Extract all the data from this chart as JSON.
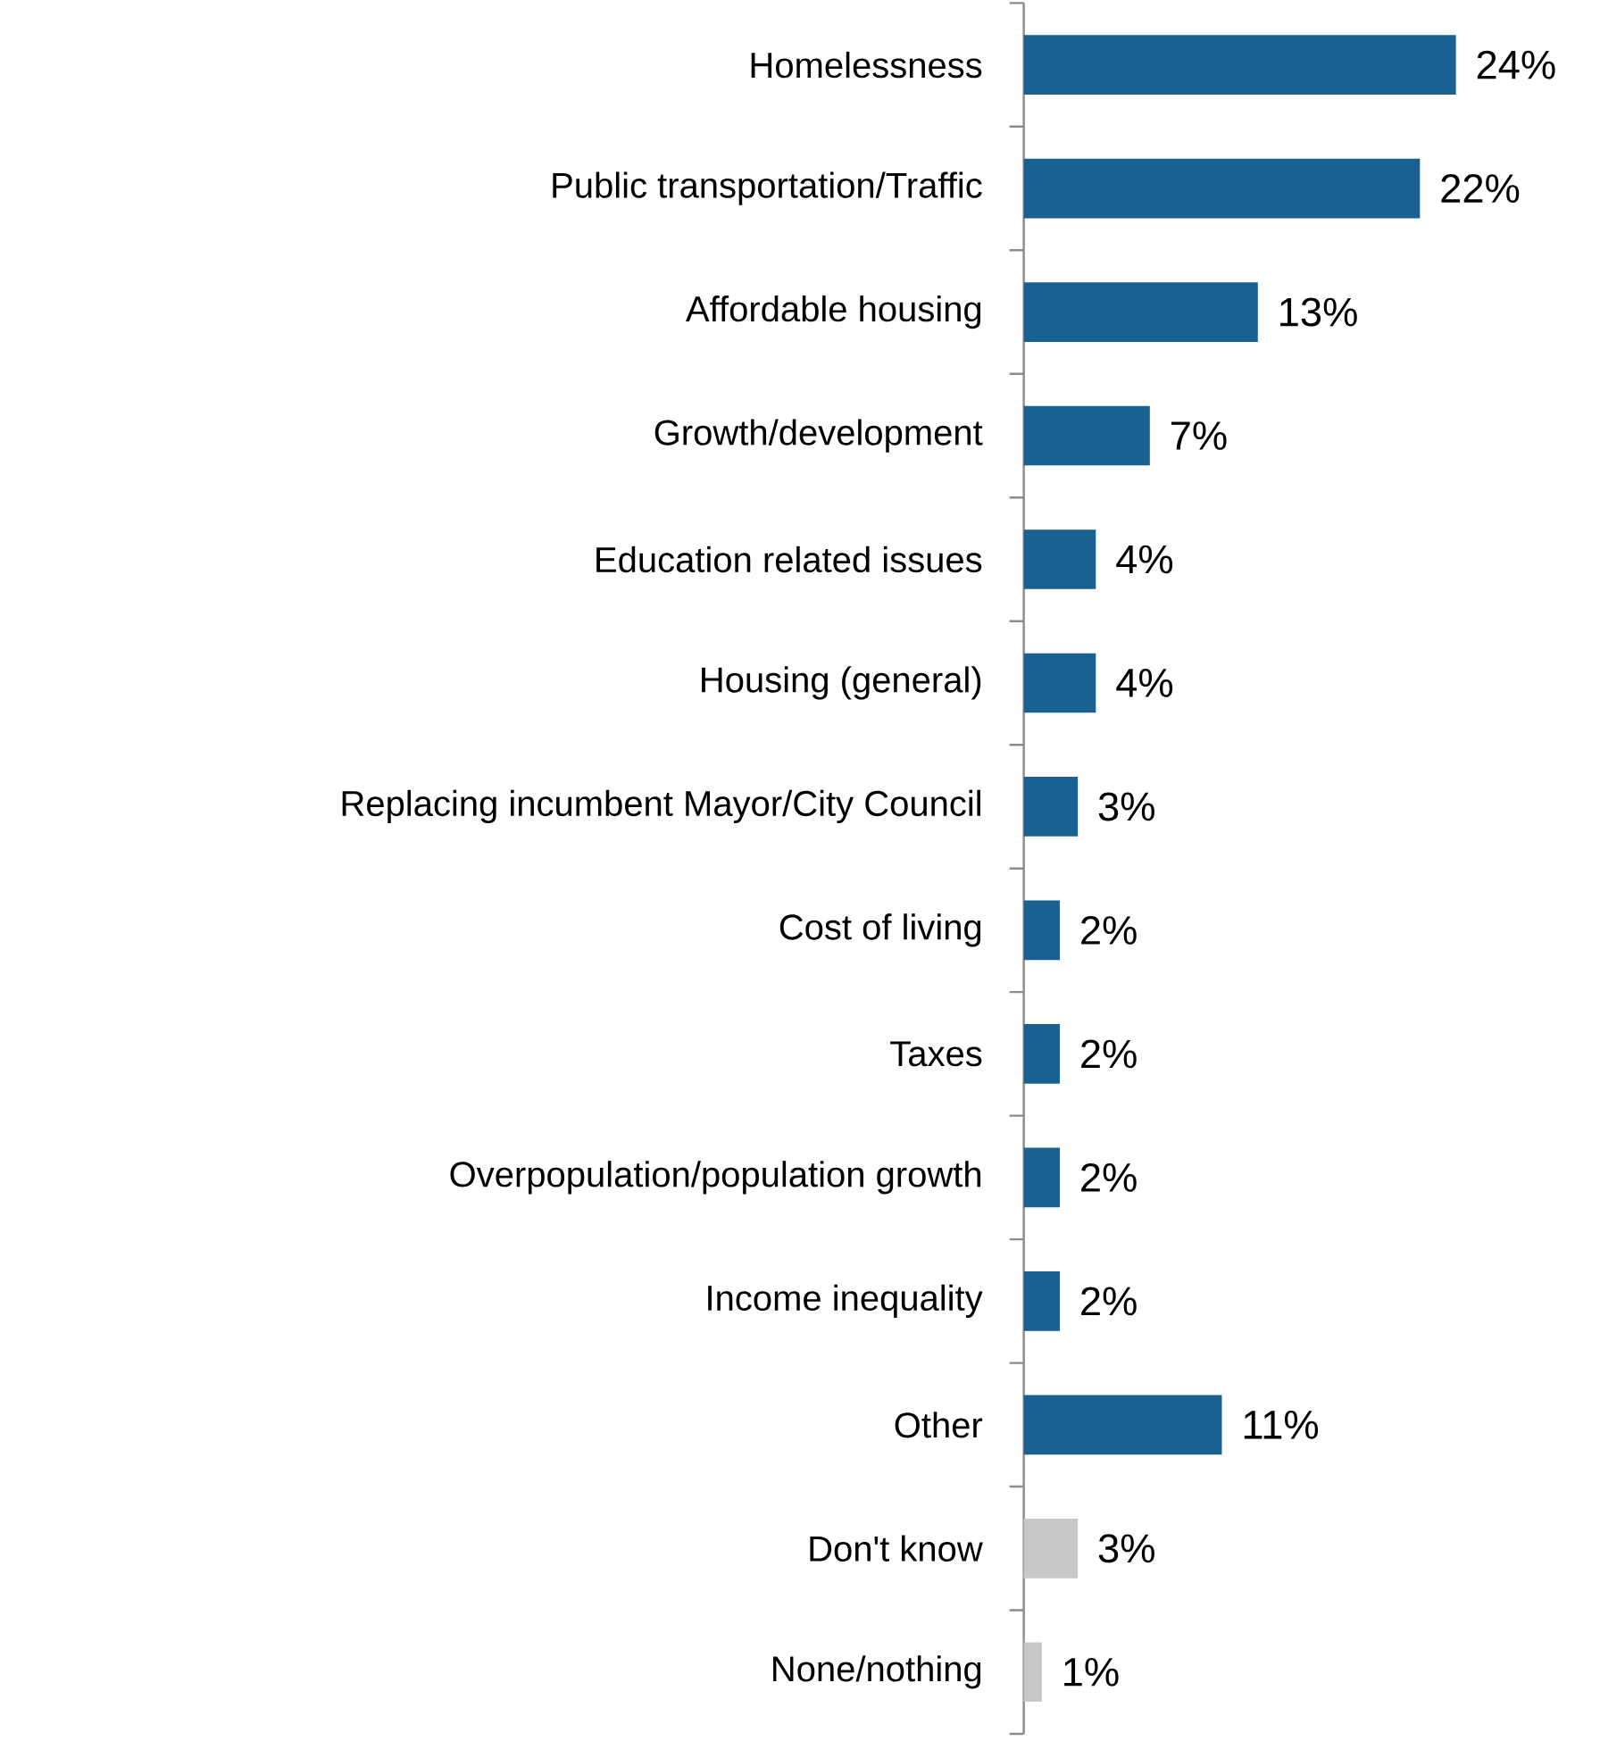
{
  "chart_data": {
    "type": "bar",
    "orientation": "horizontal",
    "categories": [
      "Homelessness",
      "Public transportation/Traffic",
      "Affordable housing",
      "Growth/development",
      "Education related issues",
      "Housing (general)",
      "Replacing incumbent Mayor/City Council",
      "Cost of living",
      "Taxes",
      "Overpopulation/population growth",
      "Income inequality",
      "Other",
      "Don't know",
      "None/nothing"
    ],
    "values": [
      24,
      22,
      13,
      7,
      4,
      4,
      3,
      2,
      2,
      2,
      2,
      11,
      3,
      1
    ],
    "value_labels": [
      "24%",
      "22%",
      "13%",
      "7%",
      "4%",
      "4%",
      "3%",
      "2%",
      "2%",
      "2%",
      "2%",
      "11%",
      "3%",
      "1%"
    ],
    "colors": [
      "#1a6193",
      "#1a6193",
      "#1a6193",
      "#1a6193",
      "#1a6193",
      "#1a6193",
      "#1a6193",
      "#1a6193",
      "#1a6193",
      "#1a6193",
      "#1a6193",
      "#1a6193",
      "#c8c8c8",
      "#c8c8c8"
    ]
  }
}
